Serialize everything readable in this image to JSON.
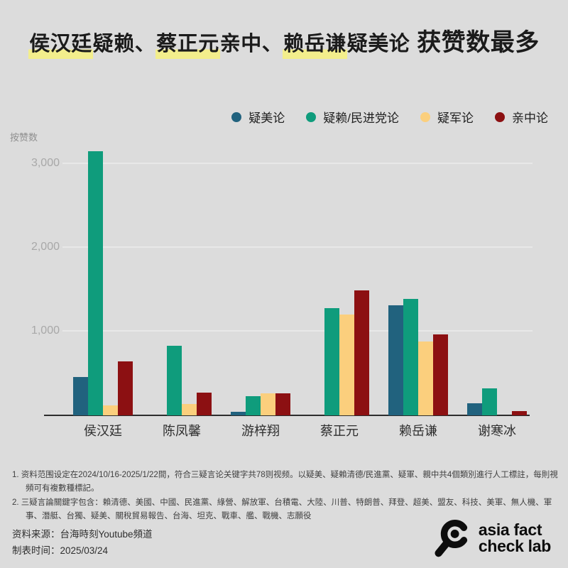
{
  "title": {
    "part1": "侯汉廷",
    "part2": "疑赖、",
    "part3": "蔡正元",
    "part4": "亲中、",
    "part5": "赖岳谦",
    "part6": "疑美论",
    "part7": "获赞数最多",
    "highlight_color": "#f3ee8c"
  },
  "chart_data": {
    "type": "bar",
    "title": "侯汉廷疑赖、蔡正元亲中、赖岳谦疑美论 获赞数最多",
    "ylabel": "按赞数",
    "xlabel": "",
    "categories": [
      "侯汉廷",
      "陈凤馨",
      "游梓翔",
      "蔡正元",
      "赖岳谦",
      "谢寒冰"
    ],
    "series": [
      {
        "name": "疑美论",
        "color": "#21627e",
        "values": [
          460,
          0,
          40,
          0,
          1310,
          140
        ]
      },
      {
        "name": "疑赖/民进党论",
        "color": "#0f9c7c",
        "values": [
          3150,
          830,
          230,
          1280,
          1390,
          320
        ]
      },
      {
        "name": "疑军论",
        "color": "#fbcf7d",
        "values": [
          115,
          135,
          260,
          1200,
          880,
          0
        ]
      },
      {
        "name": "亲中论",
        "color": "#8c1012",
        "values": [
          645,
          270,
          260,
          1490,
          965,
          55
        ]
      }
    ],
    "yticks": [
      1000,
      2000,
      3000
    ],
    "ytick_labels": [
      "1,000",
      "2,000",
      "3,000"
    ],
    "ylim": [
      0,
      3220
    ],
    "grid": true,
    "legend_position": "top-right"
  },
  "footnotes": [
    "1. 资料范围设定在2024/10/16-2025/1/22間，符合三疑言论关键字共78则视频。以疑美、疑賴清德/民進黨、疑軍、親中共4個類別進行人工標註，每則視頻可有複數種標記。",
    "2. 三疑言論關鍵字包含：賴清德、美國、中國、民進黨、綠營、解放軍、台積電、大陸、川普、特朗普、拜登、超美、盟友、科技、美軍、無人機、軍事、潛艇、台獨、疑美、關稅貿易報告、台海、坦克、戰車、艦、戰機、志願役"
  ],
  "source": {
    "line1": "资料来源：台海時刻Youtube頻道",
    "line2": "制表时间：2025/03/24"
  },
  "logo": {
    "line1": "asia fact",
    "line2": "check lab"
  }
}
